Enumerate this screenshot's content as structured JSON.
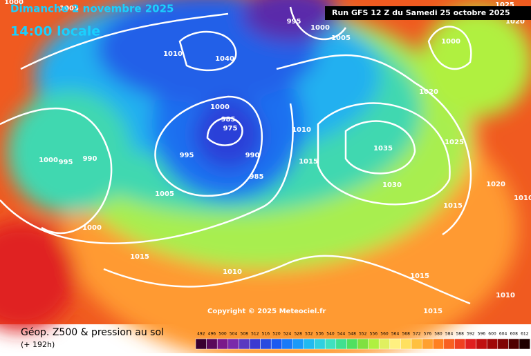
{
  "header": {
    "date": "Dimanche 2 novembre 2025",
    "time": "14:00 locale",
    "run": "Run GFS 12 Z du Samedi 25 octobre 2025"
  },
  "copyright": "Copyright © 2025 Meteociel.fr",
  "footer": {
    "title": "Géop. Z500 & pression au sol",
    "lead": "(+ 192h)"
  },
  "colorbar": {
    "labels": [
      "492",
      "496",
      "500",
      "504",
      "508",
      "512",
      "516",
      "520",
      "524",
      "528",
      "532",
      "536",
      "540",
      "544",
      "548",
      "552",
      "556",
      "560",
      "564",
      "568",
      "572",
      "576",
      "580",
      "584",
      "588",
      "592",
      "596",
      "600",
      "604",
      "608",
      "612"
    ],
    "colors": [
      "#3a0030",
      "#5a0a5a",
      "#7a1a8a",
      "#7a2aaa",
      "#5a3ac0",
      "#3a3ad0",
      "#2a4ae0",
      "#1a5af0",
      "#1a7af8",
      "#1a9af8",
      "#20baf0",
      "#30d0e0",
      "#40e0c0",
      "#40e090",
      "#50e060",
      "#80e040",
      "#b0f040",
      "#e0f060",
      "#fff080",
      "#ffe060",
      "#ffc040",
      "#ffa030",
      "#ff8020",
      "#f86020",
      "#f04020",
      "#e02020",
      "#c01010",
      "#a00808",
      "#800404",
      "#500000",
      "#200000"
    ]
  },
  "isobars": [
    "1000",
    "1005",
    "995",
    "1000",
    "1005",
    "1025",
    "1020",
    "1000",
    "1020",
    "1010",
    "1040",
    "1000",
    "985",
    "975",
    "990",
    "995",
    "1010",
    "1015",
    "985",
    "1035",
    "1030",
    "1025",
    "1020",
    "1015",
    "1005",
    "1000",
    "995",
    "990",
    "1000",
    "1015",
    "1010",
    "1015",
    "1015",
    "1010",
    "1010"
  ]
}
